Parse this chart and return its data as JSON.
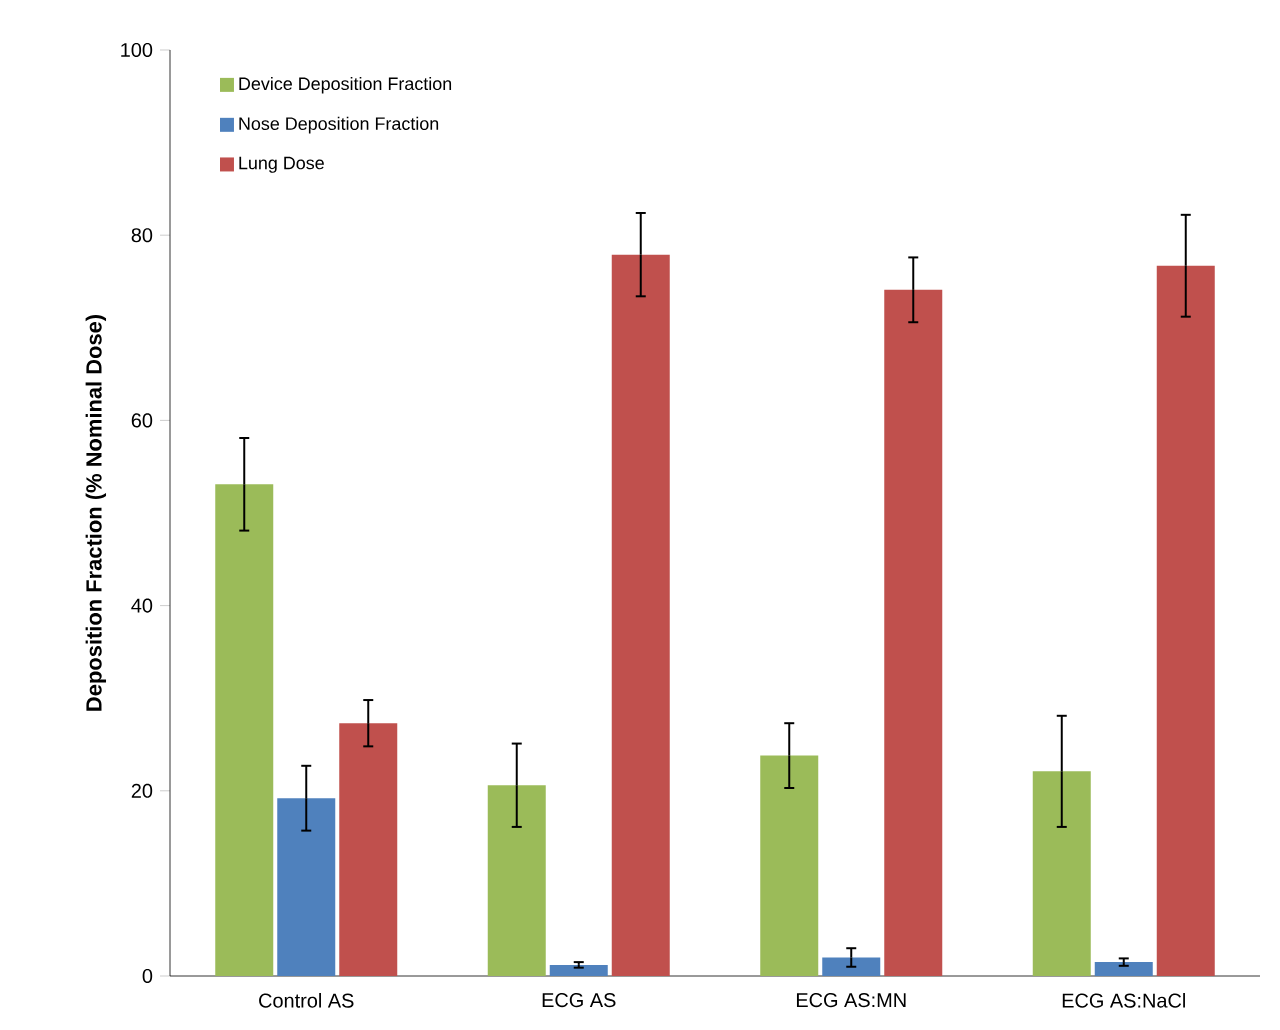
{
  "chart_data": {
    "type": "bar",
    "ylabel": "Deposition Fraction (% Nominal Dose)",
    "categories": [
      "Control AS",
      "ECG AS",
      "ECG AS:MN",
      "ECG AS:NaCl"
    ],
    "series": [
      {
        "name": "Device Deposition Fraction",
        "color": "#9bbb59",
        "values": [
          53.1,
          20.6,
          23.8,
          22.1
        ],
        "errors": [
          5,
          4.5,
          3.5,
          6
        ]
      },
      {
        "name": "Nose Deposition Fraction",
        "color": "#4f81bd",
        "values": [
          19.2,
          1.2,
          2.0,
          1.5
        ],
        "errors": [
          3.5,
          0.3,
          1,
          0.4
        ]
      },
      {
        "name": "Lung Dose",
        "color": "#c0504d",
        "values": [
          27.3,
          77.9,
          74.1,
          76.7
        ],
        "errors": [
          2.5,
          4.5,
          3.5,
          5.5
        ]
      }
    ],
    "ylim": [
      0,
      100
    ],
    "yticks": [
      0,
      20,
      40,
      60,
      80,
      100
    ],
    "legend": "top left"
  }
}
